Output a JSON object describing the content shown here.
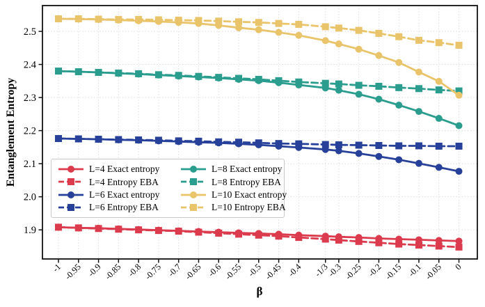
{
  "figure": {
    "background": "#ffffff",
    "axis_color": "#000000",
    "grid_color": "#d9d9d9"
  },
  "chart_data": {
    "type": "line",
    "title": "",
    "xlabel": "β",
    "ylabel": "Entanglement Entropy",
    "grid": true,
    "legend_position": "lower-left",
    "xlim": [
      -1.04,
      0.046
    ],
    "ylim": [
      1.812,
      2.578
    ],
    "y_ticks": [
      1.9,
      2.0,
      2.1,
      2.2,
      2.3,
      2.4,
      2.5
    ],
    "x_tick_labels": [
      "-1",
      "-0.95",
      "-0.9",
      "-0.85",
      "-0.8",
      "-0.75",
      "-0.7",
      "-0.65",
      "-0.6",
      "-0.55",
      "-0.5",
      "-0.45",
      "-0.4",
      "-1/3",
      "-0.3",
      "-0.25",
      "-0.2",
      "-0.15",
      "-0.1",
      "-0.05",
      "0"
    ],
    "x": [
      -1,
      -0.95,
      -0.9,
      -0.85,
      -0.8,
      -0.75,
      -0.7,
      -0.65,
      -0.6,
      -0.55,
      -0.5,
      -0.45,
      -0.4,
      -0.3333,
      -0.3,
      -0.25,
      -0.2,
      -0.15,
      -0.1,
      -0.05,
      0
    ],
    "series": [
      {
        "name": "L=4 Exact entropy",
        "color": "#DB3B4D",
        "marker": "circle",
        "line": "solid",
        "values": [
          1.908,
          1.906,
          1.905,
          1.903,
          1.901,
          1.899,
          1.897,
          1.895,
          1.893,
          1.891,
          1.889,
          1.887,
          1.884,
          1.881,
          1.879,
          1.877,
          1.874,
          1.872,
          1.87,
          1.868,
          1.866
        ]
      },
      {
        "name": "L=4 Entropy EBA",
        "color": "#DB3B4D",
        "marker": "square",
        "line": "dashed",
        "values": [
          1.908,
          1.906,
          1.904,
          1.902,
          1.9,
          1.898,
          1.896,
          1.893,
          1.89,
          1.887,
          1.884,
          1.881,
          1.877,
          1.872,
          1.869,
          1.865,
          1.861,
          1.857,
          1.854,
          1.851,
          1.848
        ]
      },
      {
        "name": "L=6 Exact entropy",
        "color": "#27419A",
        "marker": "circle",
        "line": "solid",
        "values": [
          2.176,
          2.175,
          2.174,
          2.172,
          2.171,
          2.169,
          2.167,
          2.165,
          2.163,
          2.16,
          2.157,
          2.153,
          2.149,
          2.143,
          2.139,
          2.131,
          2.122,
          2.112,
          2.101,
          2.089,
          2.077
        ]
      },
      {
        "name": "L=6 Entropy EBA",
        "color": "#27419A",
        "marker": "square",
        "line": "dashed",
        "values": [
          2.176,
          2.175,
          2.174,
          2.173,
          2.172,
          2.171,
          2.169,
          2.168,
          2.166,
          2.165,
          2.163,
          2.161,
          2.16,
          2.158,
          2.157,
          2.156,
          2.155,
          2.154,
          2.154,
          2.153,
          2.153
        ]
      },
      {
        "name": "L=8 Exact entropy",
        "color": "#2A9D8F",
        "marker": "circle",
        "line": "solid",
        "values": [
          2.38,
          2.378,
          2.376,
          2.373,
          2.371,
          2.368,
          2.365,
          2.362,
          2.359,
          2.355,
          2.351,
          2.345,
          2.338,
          2.329,
          2.322,
          2.31,
          2.295,
          2.277,
          2.258,
          2.237,
          2.215
        ]
      },
      {
        "name": "L=8 Entropy EBA",
        "color": "#2A9D8F",
        "marker": "square",
        "line": "dashed",
        "values": [
          2.38,
          2.378,
          2.376,
          2.374,
          2.372,
          2.369,
          2.367,
          2.364,
          2.361,
          2.358,
          2.355,
          2.351,
          2.347,
          2.343,
          2.341,
          2.337,
          2.334,
          2.33,
          2.327,
          2.323,
          2.32
        ]
      },
      {
        "name": "L=10 Exact entropy",
        "color": "#E9C46A",
        "marker": "circle",
        "line": "solid",
        "values": [
          2.538,
          2.537,
          2.536,
          2.534,
          2.532,
          2.53,
          2.527,
          2.524,
          2.518,
          2.511,
          2.505,
          2.497,
          2.488,
          2.472,
          2.462,
          2.446,
          2.427,
          2.406,
          2.377,
          2.349,
          2.307
        ]
      },
      {
        "name": "L=10 Entropy EBA",
        "color": "#E9C46A",
        "marker": "square",
        "line": "dashed",
        "values": [
          2.538,
          2.538,
          2.537,
          2.536,
          2.536,
          2.535,
          2.534,
          2.533,
          2.531,
          2.529,
          2.527,
          2.524,
          2.521,
          2.514,
          2.51,
          2.503,
          2.494,
          2.484,
          2.473,
          2.466,
          2.458
        ]
      }
    ]
  }
}
